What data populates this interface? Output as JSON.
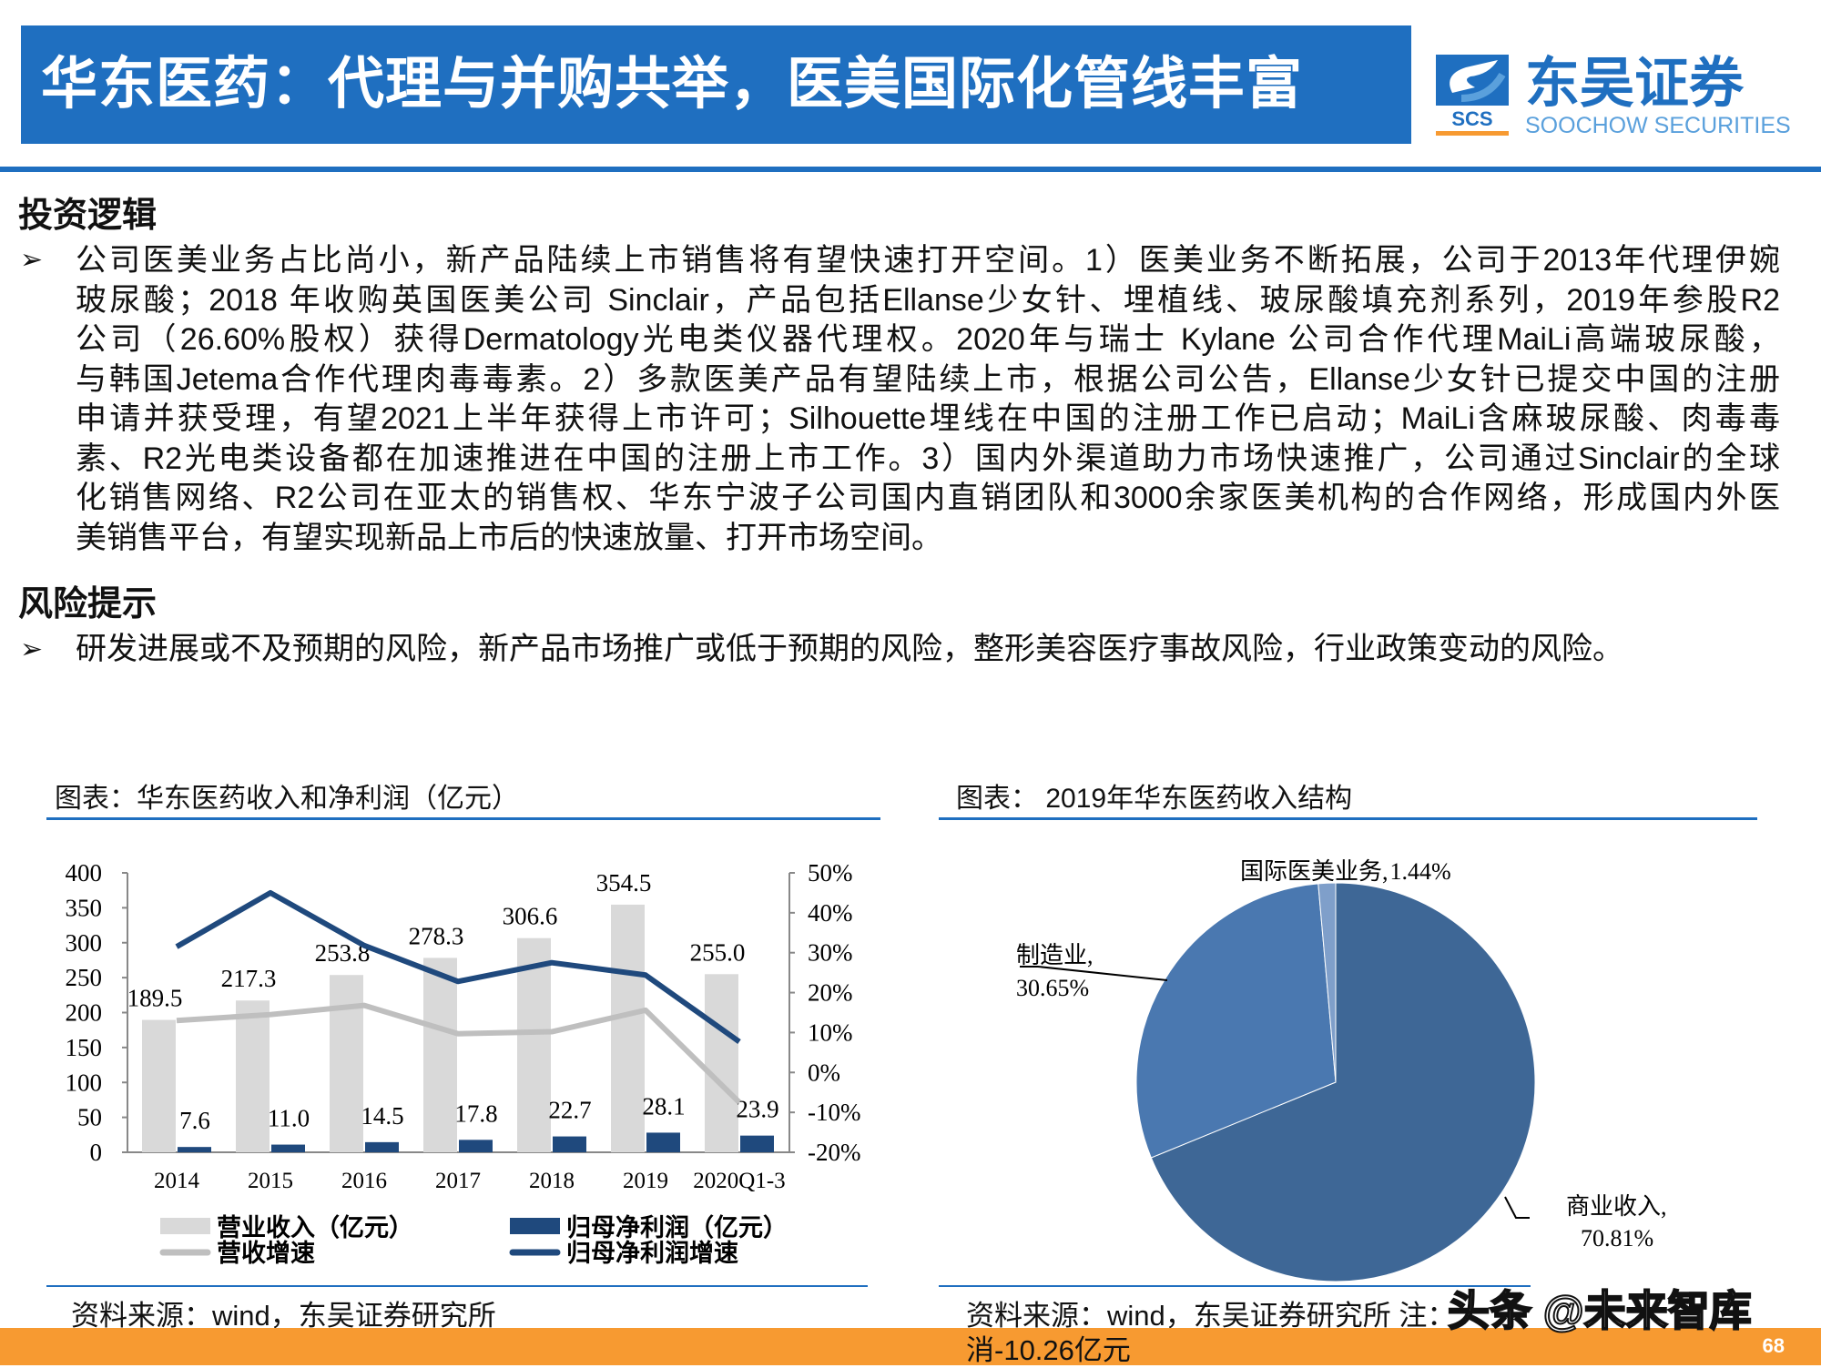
{
  "header": {
    "title": "华东医药：代理与并购共举，医美国际化管线丰富",
    "logo_cn": "东吴证券",
    "logo_en": "SOOCHOW SECURITIES",
    "logo_mark": "SCS",
    "brand_color": "#1f6fc0"
  },
  "investment": {
    "heading": "投资逻辑",
    "bullet_icon": "arrow-bullet-icon",
    "lines": [
      "公司医美业务占比尚小，新产品陆续上市销售将有望快速打开空间。1）医美业务不断拓展，公司于2013年代理伊婉",
      "玻尿酸；2018 年收购英国医美公司 Sinclair，产品包括Ellanse少女针、埋植线、玻尿酸填充剂系列，2019年参股R2",
      "公司（26.60%股权）获得Dermatology光电类仪器代理权。2020年与瑞士 Kylane 公司合作代理MaiLi高端玻尿酸，",
      "与韩国Jetema合作代理肉毒毒素。2）多款医美产品有望陆续上市，根据公司公告，Ellanse少女针已提交中国的注册",
      "申请并获受理，有望2021上半年获得上市许可；Silhouette埋线在中国的注册工作已启动；MaiLi含麻玻尿酸、肉毒毒",
      "素、R2光电类设备都在加速推进在中国的注册上市工作。3）国内外渠道助力市场快速推广，公司通过Sinclair的全球",
      "化销售网络、R2公司在亚太的销售权、华东宁波子公司国内直销团队和3000余家医美机构的合作网络，形成国内外医",
      "美销售平台，有望实现新品上市后的快速放量、打开市场空间。"
    ]
  },
  "risk": {
    "heading": "风险提示",
    "text": "研发进展或不及预期的风险，新产品市场推广或低于预期的风险，整形美容医疗事故风险，行业政策变动的风险。"
  },
  "chart_data": [
    {
      "type": "bar",
      "title": "图表：华东医药收入和净利润（亿元）",
      "categories": [
        "2014",
        "2015",
        "2016",
        "2017",
        "2018",
        "2019",
        "2020Q1-3"
      ],
      "y_left": {
        "range": [
          0,
          400
        ],
        "ticks": [
          "0",
          "50",
          "100",
          "150",
          "200",
          "250",
          "300",
          "350",
          "400"
        ]
      },
      "y_right": {
        "range": [
          -20,
          50
        ],
        "ticks": [
          "-20%",
          "-10%",
          "0%",
          "10%",
          "20%",
          "30%",
          "40%",
          "50%"
        ]
      },
      "series": [
        {
          "name": "营业收入（亿元）",
          "kind": "bar",
          "color": "#d9d9d9",
          "values": [
            189.5,
            217.3,
            253.8,
            278.3,
            306.6,
            354.5,
            255.0
          ],
          "labels": [
            "189.5",
            "217.3",
            "253.8",
            "278.3",
            "306.6",
            "354.5",
            "255.0"
          ]
        },
        {
          "name": "归母净利润（亿元）",
          "kind": "bar",
          "color": "#1f497d",
          "values": [
            7.6,
            11.0,
            14.5,
            17.8,
            22.7,
            28.1,
            23.9
          ],
          "labels": [
            "7.6",
            "11.0",
            "14.5",
            "17.8",
            "22.7",
            "28.1",
            "23.9"
          ]
        },
        {
          "name": "营收增速",
          "kind": "line",
          "axis": "right",
          "color": "#bfbfbf",
          "values": [
            13.0,
            14.5,
            16.8,
            9.7,
            10.2,
            15.6,
            -7.5
          ]
        },
        {
          "name": "归母净利润增速",
          "kind": "line",
          "axis": "right",
          "color": "#1f497d",
          "values": [
            31.5,
            45.0,
            31.8,
            22.8,
            27.5,
            24.4,
            7.7
          ]
        }
      ],
      "legend": "bottom",
      "grid": false
    },
    {
      "type": "pie",
      "title": "图表： 2019年华东医药收入结构",
      "slices": [
        {
          "name": "商业收入",
          "value": 70.81,
          "label": "70.81%",
          "color": "#3e6796"
        },
        {
          "name": "制造业",
          "value": 30.65,
          "label": "30.65%",
          "color": "#4a78b0"
        },
        {
          "name": "国际医美业务",
          "value": 1.44,
          "label": "1.44%",
          "color": "#7f9fca"
        }
      ]
    }
  ],
  "sources": {
    "left": "资料来源：wind，东吴证券研究所",
    "right": "资料来源：wind，东吴证券研究所  注：",
    "right_cont": "消-10.26亿元"
  },
  "watermark": "头条 @未来智库",
  "footer": {
    "page_number": "68",
    "color": "#f79a31"
  }
}
